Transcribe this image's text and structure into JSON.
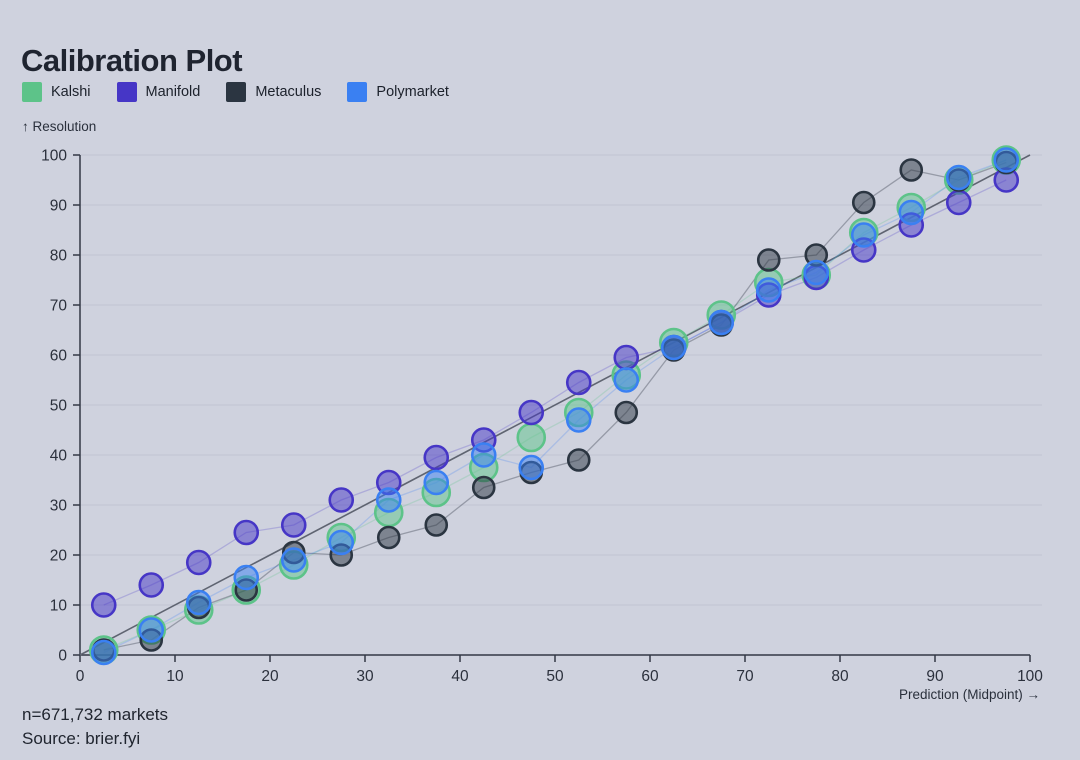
{
  "title": "Calibration Plot",
  "legend": {
    "items": [
      {
        "label": "Kalshi",
        "color": "#5dc389"
      },
      {
        "label": "Manifold",
        "color": "#4636c6"
      },
      {
        "label": "Metaculus",
        "color": "#2b3541"
      },
      {
        "label": "Polymarket",
        "color": "#3a80f2"
      }
    ]
  },
  "axes": {
    "y_label": "↑ Resolution",
    "x_label": "Prediction (Midpoint) →"
  },
  "footer": {
    "markets": "n=671,732 markets",
    "source": "Source: brier.fyi"
  },
  "chart_data": {
    "type": "scatter",
    "connected": true,
    "title": "Calibration Plot",
    "xlabel": "Prediction (Midpoint)",
    "ylabel": "Resolution",
    "xlim": [
      0,
      100
    ],
    "ylim": [
      0,
      100
    ],
    "xticks": [
      0,
      10,
      20,
      30,
      40,
      50,
      60,
      70,
      80,
      90,
      100
    ],
    "yticks": [
      0,
      10,
      20,
      30,
      40,
      50,
      60,
      70,
      80,
      90,
      100
    ],
    "grid": "horizontal",
    "legend_position": "top-left",
    "reference_line": {
      "from": [
        0,
        0
      ],
      "to": [
        100,
        100
      ]
    },
    "x": [
      2.5,
      7.5,
      12.5,
      17.5,
      22.5,
      27.5,
      32.5,
      37.5,
      42.5,
      47.5,
      52.5,
      57.5,
      62.5,
      67.5,
      72.5,
      77.5,
      82.5,
      87.5,
      92.5,
      97.5
    ],
    "series": [
      {
        "name": "Kalshi",
        "color": "#5dc389",
        "point_radius": 13.5,
        "values": [
          1,
          5,
          9,
          13,
          18,
          23.5,
          28.5,
          32.5,
          37.5,
          43.5,
          48.5,
          56,
          62.5,
          68,
          74.5,
          76,
          84.5,
          89.5,
          95,
          99
        ]
      },
      {
        "name": "Manifold",
        "color": "#4636c6",
        "point_radius": 11.5,
        "values": [
          10,
          14,
          18.5,
          24.5,
          26,
          31,
          34.5,
          39.5,
          43,
          48.5,
          54.5,
          59.5,
          61.5,
          66.5,
          72,
          75.5,
          81,
          86,
          90.5,
          95
        ]
      },
      {
        "name": "Metaculus",
        "color": "#2b3541",
        "point_radius": 10.5,
        "values": [
          1,
          3,
          9.5,
          13,
          20.5,
          20,
          23.5,
          26,
          33.5,
          36.5,
          39,
          48.5,
          61,
          66,
          79,
          80,
          90.5,
          97,
          95,
          98.5
        ]
      },
      {
        "name": "Polymarket",
        "color": "#3a80f2",
        "point_radius": 11.5,
        "values": [
          0.5,
          5,
          10.5,
          15.5,
          19,
          22.5,
          31,
          34.5,
          40,
          37.5,
          47,
          55,
          61.5,
          66.5,
          73,
          76.5,
          84,
          88.5,
          95.5,
          99
        ]
      }
    ]
  }
}
